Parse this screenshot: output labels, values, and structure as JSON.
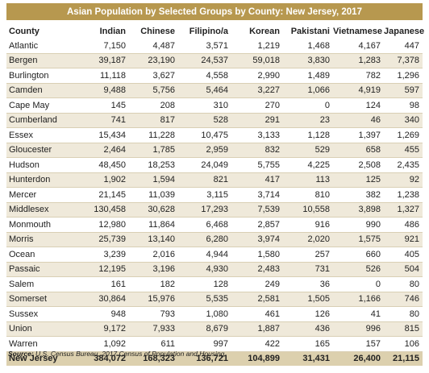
{
  "title": "Asian Population by Selected Groups by County: New Jersey, 2017",
  "columns": [
    "County",
    "Indian",
    "Chinese",
    "Filipino/a",
    "Korean",
    "Pakistani",
    "Vietnamese",
    "Japanese"
  ],
  "rows": [
    [
      "Atlantic",
      "7,150",
      "4,487",
      "3,571",
      "1,219",
      "1,468",
      "4,167",
      "447"
    ],
    [
      "Bergen",
      "39,187",
      "23,190",
      "24,537",
      "59,018",
      "3,830",
      "1,283",
      "7,378"
    ],
    [
      "Burlington",
      "11,118",
      "3,627",
      "4,558",
      "2,990",
      "1,489",
      "782",
      "1,296"
    ],
    [
      "Camden",
      "9,488",
      "5,756",
      "5,464",
      "3,227",
      "1,066",
      "4,919",
      "597"
    ],
    [
      "Cape May",
      "145",
      "208",
      "310",
      "270",
      "0",
      "124",
      "98"
    ],
    [
      "Cumberland",
      "741",
      "817",
      "528",
      "291",
      "23",
      "46",
      "340"
    ],
    [
      "Essex",
      "15,434",
      "11,228",
      "10,475",
      "3,133",
      "1,128",
      "1,397",
      "1,269"
    ],
    [
      "Gloucester",
      "2,464",
      "1,785",
      "2,959",
      "832",
      "529",
      "658",
      "455"
    ],
    [
      "Hudson",
      "48,450",
      "18,253",
      "24,049",
      "5,755",
      "4,225",
      "2,508",
      "2,435"
    ],
    [
      "Hunterdon",
      "1,902",
      "1,594",
      "821",
      "417",
      "113",
      "125",
      "92"
    ],
    [
      "Mercer",
      "21,145",
      "11,039",
      "3,115",
      "3,714",
      "810",
      "382",
      "1,238"
    ],
    [
      "Middlesex",
      "130,458",
      "30,628",
      "17,293",
      "7,539",
      "10,558",
      "3,898",
      "1,327"
    ],
    [
      "Monmouth",
      "12,980",
      "11,864",
      "6,468",
      "2,857",
      "916",
      "990",
      "486"
    ],
    [
      "Morris",
      "25,739",
      "13,140",
      "6,280",
      "3,974",
      "2,020",
      "1,575",
      "921"
    ],
    [
      "Ocean",
      "3,239",
      "2,016",
      "4,944",
      "1,580",
      "257",
      "660",
      "405"
    ],
    [
      "Passaic",
      "12,195",
      "3,196",
      "4,930",
      "2,483",
      "731",
      "526",
      "504"
    ],
    [
      "Salem",
      "161",
      "182",
      "128",
      "249",
      "36",
      "0",
      "80"
    ],
    [
      "Somerset",
      "30,864",
      "15,976",
      "5,535",
      "2,581",
      "1,505",
      "1,166",
      "746"
    ],
    [
      "Sussex",
      "948",
      "793",
      "1,080",
      "461",
      "126",
      "41",
      "80"
    ],
    [
      "Union",
      "9,172",
      "7,933",
      "8,679",
      "1,887",
      "436",
      "996",
      "815"
    ],
    [
      "Warren",
      "1,092",
      "611",
      "997",
      "422",
      "165",
      "157",
      "106"
    ]
  ],
  "total": [
    "New Jersey",
    "384,072",
    "168,323",
    "136,721",
    "104,899",
    "31,431",
    "26,400",
    "21,115"
  ],
  "source_label": "Source:",
  "source_text": "U.S. Census Bureau, 2017 Census of Population and Housing",
  "colors": {
    "title_bg": "#b7984f",
    "row_alt": "#efe9da",
    "total_bg": "#dcd0ae"
  }
}
